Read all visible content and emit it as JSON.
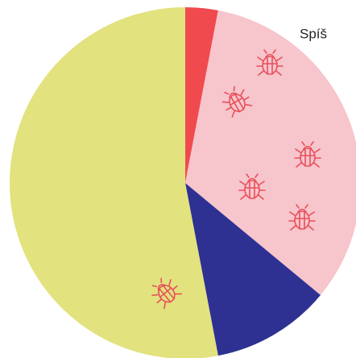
{
  "chart_data": {
    "type": "pie",
    "values": [
      3,
      33,
      11,
      53
    ],
    "colors": [
      "#f04a4f",
      "#f7c5cc",
      "#2e3192",
      "#e2e27e"
    ],
    "subtitle": "Spíš"
  }
}
